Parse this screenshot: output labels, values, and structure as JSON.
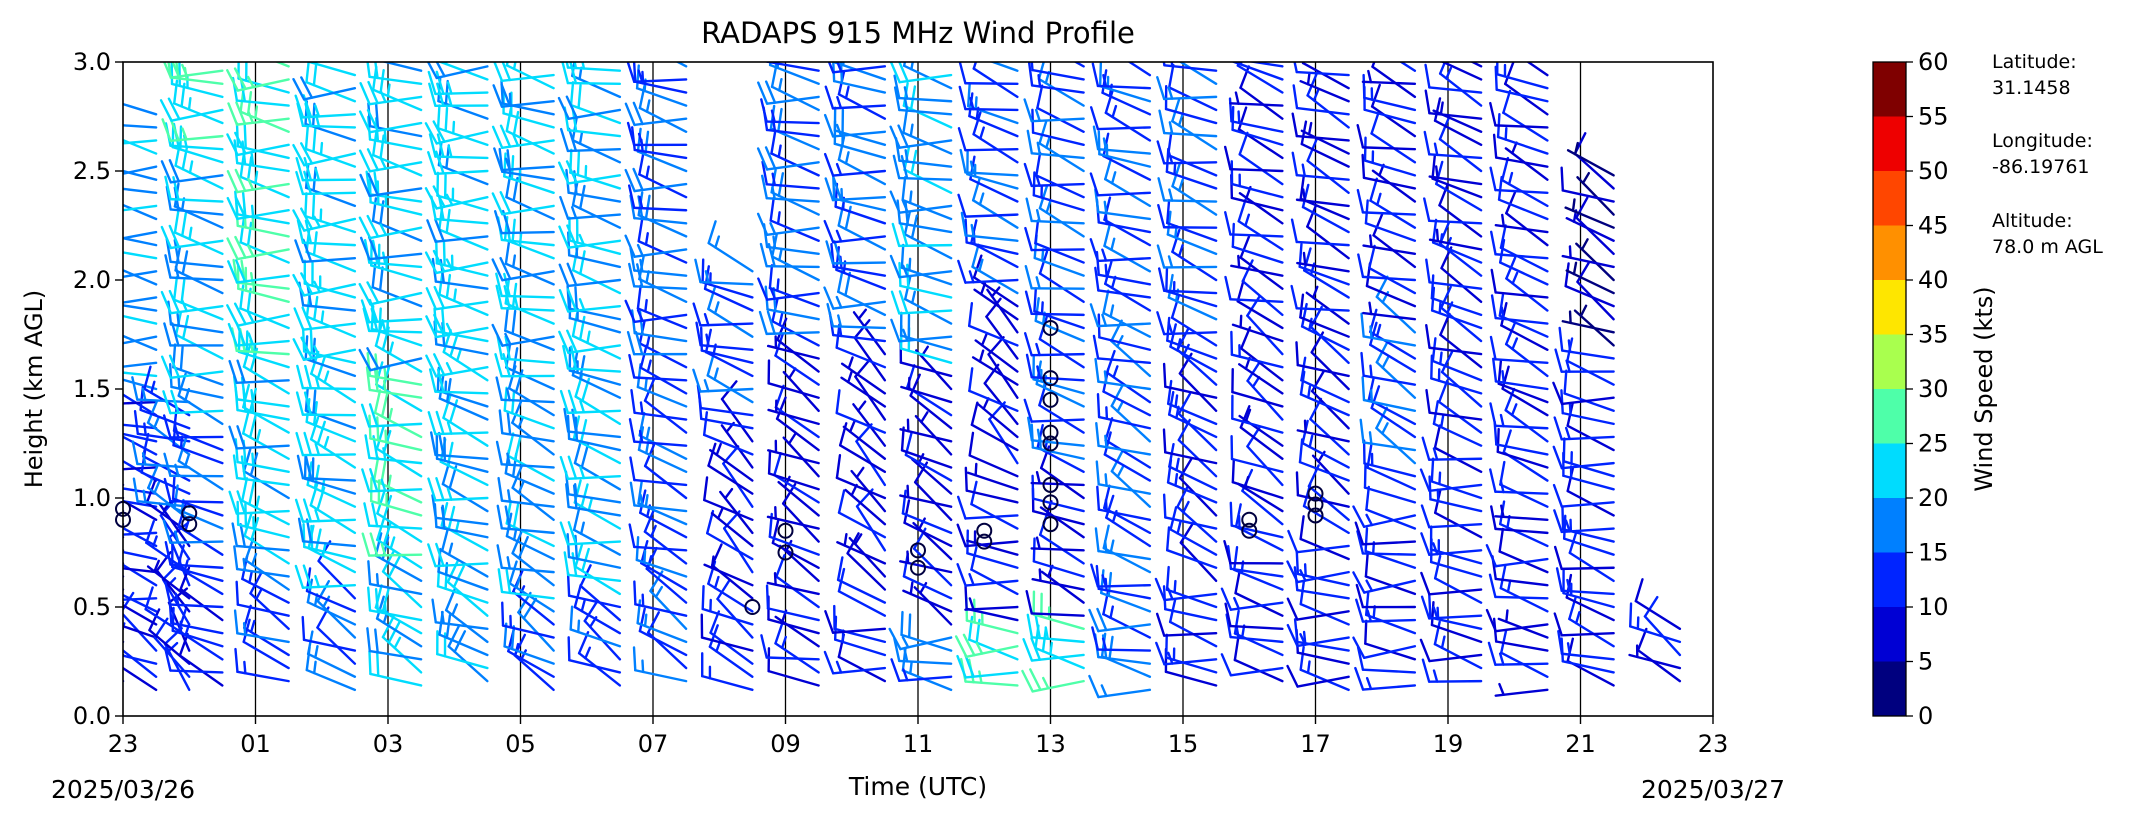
{
  "chart_data": {
    "type": "wind-barb",
    "title": "RADAPS 915 MHz Wind Profile",
    "xlabel": "Time (UTC)",
    "ylabel": "Height (km AGL)",
    "x_tick_labels": [
      "23",
      "01",
      "03",
      "05",
      "07",
      "09",
      "11",
      "13",
      "15",
      "17",
      "19",
      "21",
      "23"
    ],
    "y_ticks": [
      0.0,
      0.5,
      1.0,
      1.5,
      2.0,
      2.5,
      3.0
    ],
    "y_tick_labels": [
      "0.0",
      "0.5",
      "1.0",
      "1.5",
      "2.0",
      "2.5",
      "3.0"
    ],
    "ylim": [
      0,
      3
    ],
    "x_range_hours": [
      23,
      47
    ],
    "start_date_label": "2025/03/26",
    "end_date_label": "2025/03/27",
    "hourly_dividers": [
      1,
      3,
      5,
      7,
      9,
      11,
      13,
      15,
      17,
      19,
      21
    ],
    "colorbar": {
      "label": "Wind Speed (kts)",
      "ticks": [
        0,
        5,
        10,
        15,
        20,
        25,
        30,
        35,
        40,
        45,
        50,
        55,
        60
      ],
      "tick_labels": [
        "0",
        "5",
        "10",
        "15",
        "20",
        "25",
        "30",
        "35",
        "40",
        "45",
        "50",
        "55",
        "60"
      ],
      "colors": [
        "#00007f",
        "#0000d4",
        "#0024ff",
        "#0080ff",
        "#00dcfe",
        "#4effa9",
        "#a9ff4e",
        "#fee600",
        "#ff9000",
        "#ff4600",
        "#ee0000",
        "#7f0000"
      ]
    },
    "station_info": {
      "lat_label": "Latitude:",
      "lat_value": "31.1458",
      "lon_label": "Longitude:",
      "lon_value": "-86.19761",
      "alt_label": "Altitude:",
      "alt_value": "78.0 m AGL"
    },
    "profiles": [
      {
        "time": 23.0,
        "layers": [
          {
            "top": 1.1,
            "speed": 6,
            "dir": 290
          }
        ]
      },
      {
        "time": 23.5,
        "layers": [
          {
            "top": 0.45,
            "speed": 10,
            "dir": 300
          },
          {
            "top": 1.5,
            "speed": 12,
            "dir": 285
          },
          {
            "top": 2.8,
            "speed": 18,
            "dir": 275
          }
        ]
      },
      {
        "time": 24.0,
        "layers": [
          {
            "top": 0.9,
            "speed": 10,
            "dir": 320
          },
          {
            "top": 1.5,
            "speed": 14,
            "dir": 290
          }
        ]
      },
      {
        "time": 24.5,
        "layers": [
          {
            "top": 0.6,
            "speed": 12,
            "dir": 290
          },
          {
            "top": 1.4,
            "speed": 14,
            "dir": 285
          },
          {
            "top": 2.5,
            "speed": 20,
            "dir": 280
          },
          {
            "top": 3.0,
            "speed": 24,
            "dir": 275
          }
        ]
      },
      {
        "time": 25.5,
        "layers": [
          {
            "top": 0.7,
            "speed": 14,
            "dir": 295
          },
          {
            "top": 1.6,
            "speed": 22,
            "dir": 285
          },
          {
            "top": 3.0,
            "speed": 24,
            "dir": 275
          }
        ]
      },
      {
        "time": 26.5,
        "layers": [
          {
            "top": 0.6,
            "speed": 14,
            "dir": 300
          },
          {
            "top": 1.6,
            "speed": 22,
            "dir": 285
          },
          {
            "top": 3.0,
            "speed": 22,
            "dir": 275
          }
        ]
      },
      {
        "time": 27.5,
        "layers": [
          {
            "top": 0.7,
            "speed": 20,
            "dir": 295
          },
          {
            "top": 1.6,
            "speed": 24,
            "dir": 285
          },
          {
            "top": 3.0,
            "speed": 22,
            "dir": 275
          }
        ]
      },
      {
        "time": 28.5,
        "layers": [
          {
            "top": 0.6,
            "speed": 18,
            "dir": 295
          },
          {
            "top": 1.6,
            "speed": 20,
            "dir": 285
          },
          {
            "top": 3.0,
            "speed": 22,
            "dir": 275
          }
        ]
      },
      {
        "time": 29.5,
        "layers": [
          {
            "top": 0.5,
            "speed": 16,
            "dir": 300
          },
          {
            "top": 1.5,
            "speed": 18,
            "dir": 290
          },
          {
            "top": 3.0,
            "speed": 20,
            "dir": 278
          }
        ]
      },
      {
        "time": 30.5,
        "layers": [
          {
            "top": 0.5,
            "speed": 14,
            "dir": 300
          },
          {
            "top": 1.6,
            "speed": 20,
            "dir": 285
          },
          {
            "top": 3.0,
            "speed": 20,
            "dir": 278
          }
        ]
      },
      {
        "time": 31.5,
        "layers": [
          {
            "top": 0.7,
            "speed": 14,
            "dir": 300
          },
          {
            "top": 1.6,
            "speed": 14,
            "dir": 290
          },
          {
            "top": 3.0,
            "speed": 16,
            "dir": 280
          }
        ]
      },
      {
        "time": 32.5,
        "layers": [
          {
            "top": 0.6,
            "speed": 12,
            "dir": 300
          },
          {
            "top": 1.3,
            "speed": 8,
            "dir": 310
          },
          {
            "top": 2.1,
            "speed": 14,
            "dir": 285
          }
        ]
      },
      {
        "time": 33.5,
        "layers": [
          {
            "top": 0.5,
            "speed": 10,
            "dir": 290
          },
          {
            "top": 1.7,
            "speed": 8,
            "dir": 300
          },
          {
            "top": 3.0,
            "speed": 16,
            "dir": 280
          }
        ]
      },
      {
        "time": 34.5,
        "layers": [
          {
            "top": 0.5,
            "speed": 12,
            "dir": 280
          },
          {
            "top": 1.7,
            "speed": 8,
            "dir": 310
          },
          {
            "top": 3.0,
            "speed": 16,
            "dir": 280
          }
        ]
      },
      {
        "time": 35.5,
        "layers": [
          {
            "top": 0.4,
            "speed": 16,
            "dir": 275
          },
          {
            "top": 1.6,
            "speed": 8,
            "dir": 300
          },
          {
            "top": 3.0,
            "speed": 18,
            "dir": 280
          }
        ]
      },
      {
        "time": 36.5,
        "layers": [
          {
            "top": 0.4,
            "speed": 24,
            "dir": 275
          },
          {
            "top": 1.1,
            "speed": 10,
            "dir": 280
          },
          {
            "top": 1.9,
            "speed": 8,
            "dir": 310
          },
          {
            "top": 3.0,
            "speed": 14,
            "dir": 285
          }
        ]
      },
      {
        "time": 37.5,
        "layers": [
          {
            "top": 0.4,
            "speed": 24,
            "dir": 275
          },
          {
            "top": 1.1,
            "speed": 8,
            "dir": 290
          },
          {
            "top": 3.0,
            "speed": 14,
            "dir": 285
          }
        ]
      },
      {
        "time": 38.5,
        "layers": [
          {
            "top": 0.7,
            "speed": 16,
            "dir": 280
          },
          {
            "top": 1.6,
            "speed": 14,
            "dir": 295
          },
          {
            "top": 3.0,
            "speed": 14,
            "dir": 285
          }
        ]
      },
      {
        "time": 39.5,
        "layers": [
          {
            "top": 0.6,
            "speed": 12,
            "dir": 280
          },
          {
            "top": 1.7,
            "speed": 12,
            "dir": 300
          },
          {
            "top": 3.0,
            "speed": 14,
            "dir": 285
          }
        ]
      },
      {
        "time": 40.5,
        "layers": [
          {
            "top": 0.8,
            "speed": 12,
            "dir": 280
          },
          {
            "top": 1.9,
            "speed": 10,
            "dir": 300
          },
          {
            "top": 3.0,
            "speed": 10,
            "dir": 290
          }
        ]
      },
      {
        "time": 41.5,
        "layers": [
          {
            "top": 0.8,
            "speed": 12,
            "dir": 275
          },
          {
            "top": 1.8,
            "speed": 10,
            "dir": 300
          },
          {
            "top": 3.0,
            "speed": 10,
            "dir": 290
          }
        ]
      },
      {
        "time": 42.5,
        "layers": [
          {
            "top": 1.0,
            "speed": 12,
            "dir": 275
          },
          {
            "top": 1.8,
            "speed": 14,
            "dir": 295
          },
          {
            "top": 3.0,
            "speed": 10,
            "dir": 290
          }
        ]
      },
      {
        "time": 43.5,
        "layers": [
          {
            "top": 1.2,
            "speed": 12,
            "dir": 280
          },
          {
            "top": 2.1,
            "speed": 12,
            "dir": 295
          },
          {
            "top": 3.0,
            "speed": 10,
            "dir": 290
          }
        ]
      },
      {
        "time": 44.5,
        "layers": [
          {
            "top": 1.0,
            "speed": 10,
            "dir": 280
          },
          {
            "top": 2.0,
            "speed": 12,
            "dir": 290
          },
          {
            "top": 3.0,
            "speed": 10,
            "dir": 290
          }
        ]
      },
      {
        "time": 45.5,
        "layers": [
          {
            "top": 0.7,
            "speed": 12,
            "dir": 285
          },
          {
            "top": 1.7,
            "speed": 12,
            "dir": 280
          },
          {
            "top": 2.5,
            "speed": 6,
            "dir": 300
          }
        ]
      },
      {
        "time": 46.5,
        "layers": [
          {
            "top": 0.4,
            "speed": 10,
            "dir": 300
          }
        ]
      }
    ],
    "calm_points": [
      {
        "time": 23.0,
        "heights": [
          0.9,
          0.95
        ]
      },
      {
        "time": 24.0,
        "heights": [
          0.88,
          0.93
        ]
      },
      {
        "time": 32.5,
        "heights": [
          0.5
        ]
      },
      {
        "time": 33.0,
        "heights": [
          0.75,
          0.85
        ]
      },
      {
        "time": 35.0,
        "heights": [
          0.68,
          0.76
        ]
      },
      {
        "time": 36.0,
        "heights": [
          0.8,
          0.85
        ]
      },
      {
        "time": 37.0,
        "heights": [
          0.88,
          0.98,
          1.06,
          1.25,
          1.3,
          1.45,
          1.55,
          1.78
        ]
      },
      {
        "time": 40.0,
        "heights": [
          0.85,
          0.9
        ]
      },
      {
        "time": 41.0,
        "heights": [
          0.92,
          0.97,
          1.02
        ]
      }
    ]
  }
}
